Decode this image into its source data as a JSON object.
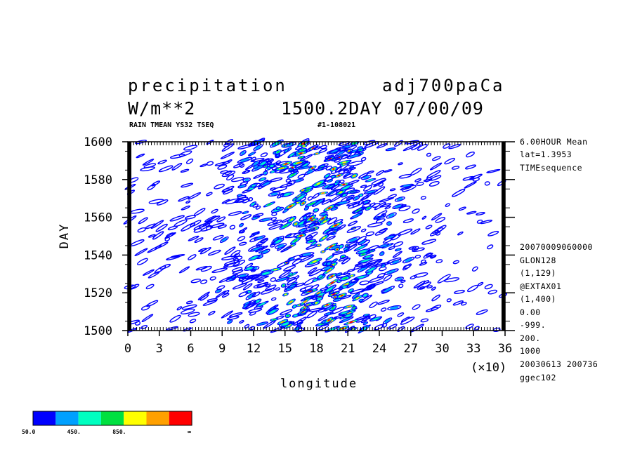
{
  "header": {
    "title_left": "precipitation",
    "title_right": "adj700paCa",
    "units": "W/m**2",
    "time_info": "1500.2DAY 07/00/09",
    "subtitle_left": "RAIN TMEAN YS32 TSEQ",
    "subtitle_right": "#1-108021"
  },
  "side_info": {
    "top": [
      "6.00HOUR Mean",
      "lat=1.3953",
      "TIMEsequence"
    ],
    "bottom": [
      "20070009060000",
      "GLON128",
      "(1,129)",
      "@EXTAX01",
      "(1,400)",
      "0.00",
      "-999.",
      "200.",
      "1000",
      "20030613 200736",
      "ggec102"
    ]
  },
  "axes": {
    "xlabel": "longitude",
    "ylabel": "DAY",
    "x_multiplier": "(×10)",
    "x_ticks": [
      "0",
      "3",
      "6",
      "9",
      "12",
      "15",
      "18",
      "21",
      "24",
      "27",
      "30",
      "33",
      "36"
    ],
    "y_ticks": [
      "1500",
      "1520",
      "1540",
      "1560",
      "1580",
      "1600"
    ]
  },
  "colorbar": {
    "colors": [
      "#0000ff",
      "#00a0ff",
      "#00ffc0",
      "#00e040",
      "#ffff00",
      "#ffa000",
      "#ff0000"
    ],
    "labels": [
      "50.0",
      "450.",
      "850.",
      "∞"
    ]
  },
  "chart_data": {
    "type": "heatmap",
    "title": "precipitation",
    "xlabel": "longitude",
    "ylabel": "DAY",
    "xlim": [
      0,
      360
    ],
    "ylim": [
      1500,
      1600
    ],
    "x_ticks": [
      0,
      30,
      60,
      90,
      120,
      150,
      180,
      210,
      240,
      270,
      300,
      330,
      360
    ],
    "y_ticks": [
      1500,
      1520,
      1540,
      1560,
      1580,
      1600
    ],
    "levels": [
      50,
      250,
      450,
      650,
      850,
      1050,
      1250
    ],
    "level_colors": [
      "#0000ff",
      "#00a0ff",
      "#00ffc0",
      "#00e040",
      "#ffff00",
      "#ffa000",
      "#ff0000"
    ],
    "description_of_field": "eastward-propagating precipitation streaks concentrated between longitude 100 and 260"
  }
}
